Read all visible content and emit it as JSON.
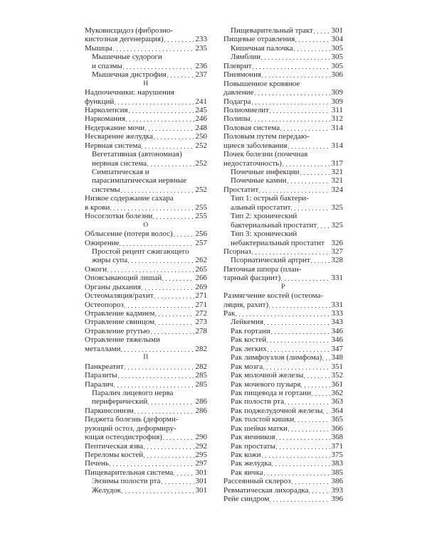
{
  "index": {
    "columns": [
      {
        "side": "left",
        "lines": [
          {
            "text": "Муковисцидоз (фиброзно-",
            "indent": 0
          },
          {
            "text": "кистозная дегенерация)",
            "page": "233",
            "indent": 0
          },
          {
            "text": "Мышцы",
            "page": "235",
            "indent": 0
          },
          {
            "text": "Мышечные судороги",
            "indent": 1
          },
          {
            "text": "и спазмы",
            "page": "236",
            "indent": 1
          },
          {
            "text": "Мышечная дистрофия",
            "page": "237",
            "indent": 1
          },
          {
            "letter": "Н"
          },
          {
            "text": "Надпочечники: нарушения",
            "indent": 0
          },
          {
            "text": "функций",
            "page": "241",
            "indent": 0
          },
          {
            "text": "Нарколепсия",
            "page": "245",
            "indent": 0
          },
          {
            "text": "Наркомания",
            "page": "246",
            "indent": 0
          },
          {
            "text": "Недержание мочи",
            "page": "248",
            "indent": 0
          },
          {
            "text": "Несварение желудка",
            "page": "250",
            "indent": 0
          },
          {
            "text": "Нервная система",
            "page": "252",
            "indent": 0
          },
          {
            "text": "Вегетативная (автономная)",
            "indent": 1
          },
          {
            "text": "нервная система",
            "page": "252",
            "indent": 1
          },
          {
            "text": "Симпатическая и",
            "indent": 1
          },
          {
            "text": "парасимпатическая нервные",
            "indent": 1
          },
          {
            "text": "системы",
            "page": "252",
            "indent": 1
          },
          {
            "text": "Низкое содержание сахара",
            "indent": 0
          },
          {
            "text": "в крови",
            "page": "255",
            "indent": 0
          },
          {
            "text": "Носоглотки болезни",
            "page": "255",
            "indent": 0
          },
          {
            "letter": "О"
          },
          {
            "text": "Облысение (потеря волос)",
            "page": "256",
            "indent": 0
          },
          {
            "text": "Ожирение",
            "page": "257",
            "indent": 0
          },
          {
            "text": "Простой рецепт сжигающего",
            "indent": 1
          },
          {
            "text": "жиры супа",
            "page": "262",
            "indent": 1
          },
          {
            "text": "Ожоги",
            "page": "265",
            "indent": 0
          },
          {
            "text": "Опоясывающий лишай",
            "page": "266",
            "indent": 0
          },
          {
            "text": "Органы дыхания",
            "page": "269",
            "indent": 0
          },
          {
            "text": "Остеомаляция/рахит",
            "page": "271",
            "indent": 0
          },
          {
            "text": "Остеопороз",
            "page": "271",
            "indent": 0
          },
          {
            "text": "Отравление кадмием",
            "page": "272",
            "indent": 0
          },
          {
            "text": "Отравление свинцом",
            "page": "273",
            "indent": 0
          },
          {
            "text": "Отравление ртутью",
            "page": "278",
            "indent": 0
          },
          {
            "text": "Отравление тяжелыми",
            "indent": 0
          },
          {
            "text": "металлами",
            "page": "282",
            "indent": 0
          },
          {
            "letter": "П"
          },
          {
            "text": "Панкреатит",
            "page": "282",
            "indent": 0
          },
          {
            "text": "Паразиты",
            "page": "285",
            "indent": 0
          },
          {
            "text": "Паралич",
            "page": "285",
            "indent": 0
          },
          {
            "text": "Паралич лицевого нерва",
            "indent": 1
          },
          {
            "text": "периферический",
            "page": "286",
            "indent": 1
          },
          {
            "text": "Паркинсонизм",
            "page": "286",
            "indent": 0
          },
          {
            "text": "Педжета болезнь (деформи-",
            "indent": 0
          },
          {
            "text": "рующий остоз, деформиру-",
            "indent": 0
          },
          {
            "text": "ющая остеодистрофия)",
            "page": "290",
            "indent": 0
          },
          {
            "text": "Пептическая язва",
            "page": "292",
            "indent": 0
          },
          {
            "text": "Переломы костей",
            "page": "295",
            "indent": 0
          },
          {
            "text": "Печень",
            "page": "297",
            "indent": 0
          },
          {
            "text": "Пищеварительная система",
            "page": "301",
            "indent": 0
          },
          {
            "text": "Энзимы полости рта",
            "page": "301",
            "indent": 1
          },
          {
            "text": "Желудок",
            "page": "301",
            "indent": 1
          }
        ]
      },
      {
        "side": "right",
        "lines": [
          {
            "text": "Пищеварительный тракт",
            "page": "301",
            "indent": 1
          },
          {
            "text": "Пищевые отравления",
            "page": "304",
            "indent": 0
          },
          {
            "text": "Кишечная палочка",
            "page": "305",
            "indent": 1
          },
          {
            "text": "Лямблии",
            "page": "305",
            "indent": 1
          },
          {
            "text": "Плеврит",
            "page": "305",
            "indent": 0
          },
          {
            "text": "Пневмония",
            "page": "306",
            "indent": 0
          },
          {
            "text": "Повышенное кровяное",
            "indent": 0
          },
          {
            "text": "давление",
            "page": "309",
            "indent": 0
          },
          {
            "text": "Подагра",
            "page": "309",
            "indent": 0
          },
          {
            "text": "Полиомиелит",
            "page": "311",
            "indent": 0
          },
          {
            "text": "Полипы",
            "page": "312",
            "indent": 0
          },
          {
            "text": "Половая система",
            "page": "314",
            "indent": 0
          },
          {
            "text": "Половым путем передаю-",
            "indent": 0
          },
          {
            "text": "щиеся заболевания",
            "page": "314",
            "indent": 0
          },
          {
            "text": "Почек болезни (почечная",
            "indent": 0
          },
          {
            "text": "недостаточность)",
            "page": "317",
            "indent": 0
          },
          {
            "text": "Почечные инфекции",
            "page": "321",
            "indent": 1
          },
          {
            "text": "Почечные камни",
            "page": "321",
            "indent": 1
          },
          {
            "text": "Простатит",
            "page": "324",
            "indent": 0
          },
          {
            "text": "Тип 1: острый бактери-",
            "indent": 1
          },
          {
            "text": "альный простатит",
            "page": "325",
            "indent": 1
          },
          {
            "text": "Тип 2: хронический",
            "indent": 1
          },
          {
            "text": "бактериальный простатит",
            "page": "325",
            "indent": 1
          },
          {
            "text": "Тип 3: хронический",
            "indent": 1
          },
          {
            "text": "небактериальный простатит",
            "page": "326",
            "indent": 1,
            "dots": false
          },
          {
            "text": "Псориаз",
            "page": "327",
            "indent": 0
          },
          {
            "text": "Псориатический артрит",
            "page": "328",
            "indent": 1
          },
          {
            "text": "Пяточная шпора (план-",
            "indent": 0
          },
          {
            "text": "тарный фасциит)",
            "page": "331",
            "indent": 0
          },
          {
            "letter": "Р"
          },
          {
            "text": "Размягчение костей (остеома-",
            "indent": 0
          },
          {
            "text": "ляция, рахит)",
            "page": "331",
            "indent": 0
          },
          {
            "text": "Рак",
            "page": "333",
            "indent": 0
          },
          {
            "text": "Лейкемия",
            "page": "343",
            "indent": 1
          },
          {
            "text": "Рак гортани",
            "page": "346",
            "indent": 1
          },
          {
            "text": "Рак костей",
            "page": "346",
            "indent": 1
          },
          {
            "text": "Рак легких",
            "page": "347",
            "indent": 1
          },
          {
            "text": "Рак лимфоузлов (лимфома)",
            "page": "348",
            "indent": 1
          },
          {
            "text": "Рак мозга",
            "page": "351",
            "indent": 1
          },
          {
            "text": "Рак молочной железы",
            "page": "352",
            "indent": 1
          },
          {
            "text": "Рак мочевого пузыря",
            "page": "361",
            "indent": 1
          },
          {
            "text": "Рак пищевода и гортани",
            "page": "362",
            "indent": 1
          },
          {
            "text": "Рак полости рта",
            "page": "363",
            "indent": 1
          },
          {
            "text": "Рак поджелудочной железы",
            "page": "364",
            "indent": 1
          },
          {
            "text": "Рак толстой кишки",
            "page": "365",
            "indent": 1
          },
          {
            "text": "Рак шейки матки",
            "page": "366",
            "indent": 1
          },
          {
            "text": "Рак яичников",
            "page": "368",
            "indent": 1
          },
          {
            "text": "Рак простаты",
            "page": "371",
            "indent": 1
          },
          {
            "text": "Рак кожи",
            "page": "375",
            "indent": 1
          },
          {
            "text": "Рак желудка",
            "page": "383",
            "indent": 1
          },
          {
            "text": "Рак яичка",
            "page": "385",
            "indent": 1
          },
          {
            "text": "Рассеянный склероз",
            "page": "386",
            "indent": 0
          },
          {
            "text": "Ревматическая лихорадка",
            "page": "393",
            "indent": 0
          },
          {
            "text": "Рейе синдром",
            "page": "396",
            "indent": 0
          }
        ]
      }
    ]
  }
}
